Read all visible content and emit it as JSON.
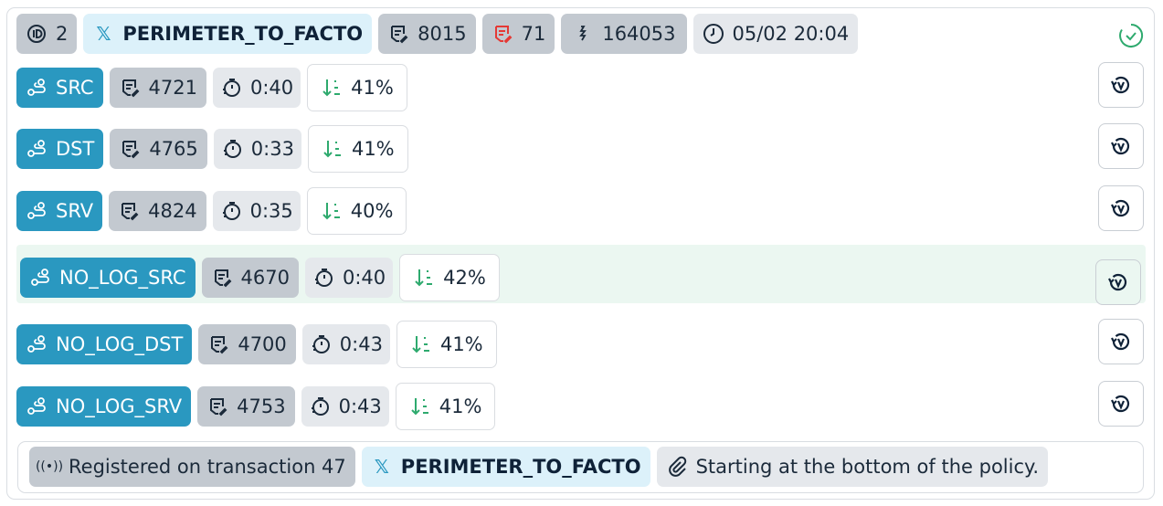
{
  "header": {
    "id": "2",
    "name": "PERIMETER_TO_FACTO",
    "rules": "8015",
    "errors": "71",
    "hits": "164053",
    "timestamp": "05/02 20:04",
    "status_icon": "check-circle-icon",
    "colors": {
      "ok": "#2eaa6e",
      "error": "#e53935",
      "accent": "#2a98c0"
    }
  },
  "rows": [
    {
      "label": "SRC",
      "count": "4721",
      "time": "0:40",
      "percent": "41%",
      "progress": 41
    },
    {
      "label": "DST",
      "count": "4765",
      "time": "0:33",
      "percent": "41%",
      "progress": 41
    },
    {
      "label": "SRV",
      "count": "4824",
      "time": "0:35",
      "percent": "40%",
      "progress": 40
    },
    {
      "label": "NO_LOG_SRC",
      "count": "4670",
      "time": "0:40",
      "percent": "42%",
      "progress": 42,
      "highlighted": true
    },
    {
      "label": "NO_LOG_DST",
      "count": "4700",
      "time": "0:43",
      "percent": "41%",
      "progress": 41
    },
    {
      "label": "NO_LOG_SRV",
      "count": "4753",
      "time": "0:43",
      "percent": "41%",
      "progress": 41
    }
  ],
  "footer": {
    "registered": "Registered on transaction 47",
    "name": "PERIMETER_TO_FACTO",
    "note": "Starting at the bottom of the policy."
  }
}
